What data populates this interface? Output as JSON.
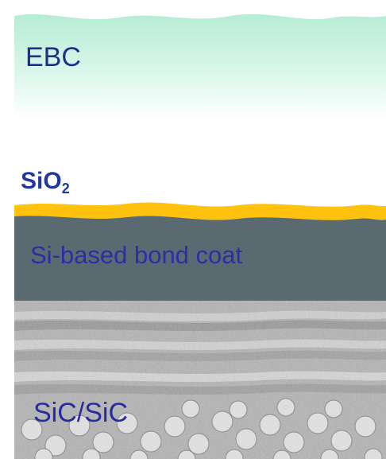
{
  "layers": {
    "ebc": {
      "label": "EBC",
      "color": "#c8f1e1"
    },
    "sio2": {
      "label": "SiO",
      "subscript": "2",
      "color": "#ffc20e"
    },
    "bond_coat": {
      "label": "Si-based bond coat",
      "color": "#5a6a70"
    },
    "substrate": {
      "label": "SiC/SiC",
      "color": "#b8b8b8"
    }
  },
  "colors": {
    "label_text": "#2a2a9a",
    "background": "#ffffff"
  }
}
